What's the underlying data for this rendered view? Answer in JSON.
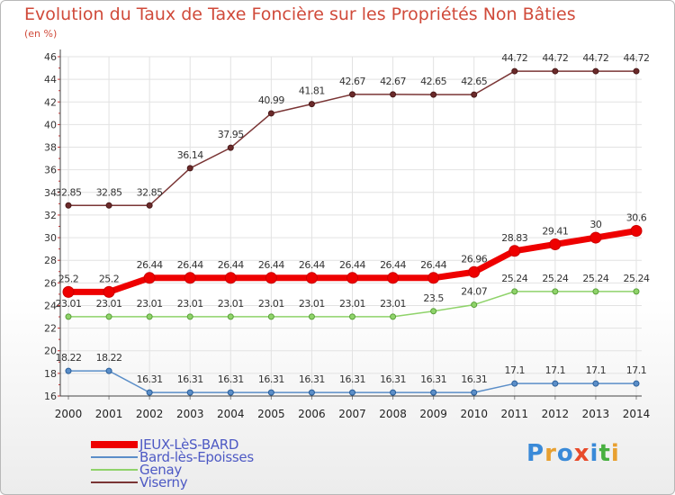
{
  "title": "Evolution du Taux de Taxe Foncière sur les Propriétés Non Bâties",
  "unit": "(en %)",
  "logo": {
    "letters": [
      "P",
      "r",
      "o",
      "x",
      "i",
      "t",
      "i"
    ],
    "colors": [
      "#3a8ad8",
      "#e8a030",
      "#3a8ad8",
      "#e84a2a",
      "#3a8ad8",
      "#48b040",
      "#e8a030"
    ]
  },
  "chart_data": {
    "type": "line",
    "x": [
      "2000",
      "2001",
      "2002",
      "2003",
      "2004",
      "2005",
      "2006",
      "2007",
      "2008",
      "2009",
      "2010",
      "2011",
      "2012",
      "2013",
      "2014"
    ],
    "ylim": [
      16,
      46
    ],
    "yticks": [
      "16",
      "18",
      "20",
      "22",
      "24",
      "26",
      "28",
      "30",
      "32",
      "34",
      "36",
      "38",
      "40",
      "42",
      "44",
      "46"
    ],
    "grid": true,
    "series": [
      {
        "name": "JEUX-LèS-BARD",
        "color": "#ee0000",
        "values": [
          25.2,
          25.2,
          26.44,
          26.44,
          26.44,
          26.44,
          26.44,
          26.44,
          26.44,
          26.44,
          26.96,
          28.83,
          29.41,
          30,
          30.6
        ],
        "labels": [
          "25.2",
          "25.2",
          "26.44",
          "26.44",
          "26.44",
          "26.44",
          "26.44",
          "26.44",
          "26.44",
          "26.44",
          "26.96",
          "28.83",
          "29.41",
          "30",
          "30.6"
        ]
      },
      {
        "name": "Bard-lès-Epoisses",
        "color": "#5b8ec8",
        "values": [
          18.22,
          18.22,
          16.31,
          16.31,
          16.31,
          16.31,
          16.31,
          16.31,
          16.31,
          16.31,
          16.31,
          17.1,
          17.1,
          17.1,
          17.1
        ],
        "labels": [
          "18.22",
          "18.22",
          "16.31",
          "16.31",
          "16.31",
          "16.31",
          "16.31",
          "16.31",
          "16.31",
          "16.31",
          "16.31",
          "17.1",
          "17.1",
          "17.1",
          "17.1"
        ]
      },
      {
        "name": "Genay",
        "color": "#8fd36a",
        "values": [
          23.01,
          23.01,
          23.01,
          23.01,
          23.01,
          23.01,
          23.01,
          23.01,
          23.01,
          23.5,
          24.07,
          25.24,
          25.24,
          25.24,
          25.24
        ],
        "labels": [
          "23.01",
          "23.01",
          "23.01",
          "23.01",
          "23.01",
          "23.01",
          "23.01",
          "23.01",
          "23.01",
          "23.5",
          "24.07",
          "25.24",
          "25.24",
          "25.24",
          "25.24"
        ]
      },
      {
        "name": "Viserny",
        "color": "#7a3535",
        "values": [
          32.85,
          32.85,
          32.85,
          36.14,
          37.95,
          40.99,
          41.81,
          42.67,
          42.67,
          42.65,
          42.65,
          44.72,
          44.72,
          44.72,
          44.72
        ],
        "labels": [
          "32.85",
          "32.85",
          "32.85",
          "36.14",
          "37.95",
          "40.99",
          "41.81",
          "42.67",
          "42.67",
          "42.65",
          "42.65",
          "44.72",
          "44.72",
          "44.72",
          "44.72"
        ]
      }
    ]
  }
}
